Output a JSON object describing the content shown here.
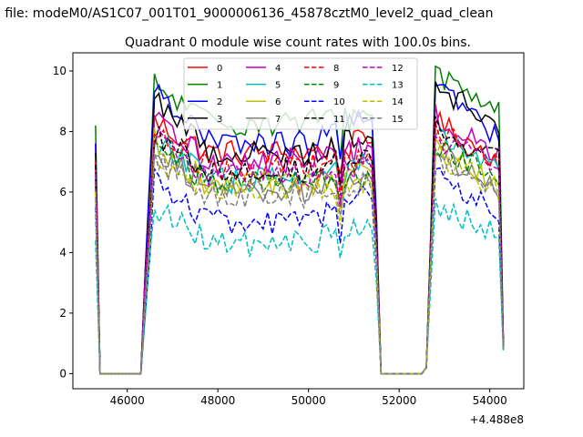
{
  "figure": {
    "suptitle": "n file: modeM0/AS1C07_001T01_9000006136_45878cztM0_level2_quad_clean",
    "title": "Quadrant 0 module wise count rates with 100.0s bins.",
    "offset_text": "+4.488e8"
  },
  "chart_data": {
    "type": "line",
    "title": "Quadrant 0 module wise count rates with 100.0s bins.",
    "xlabel": "",
    "ylabel": "",
    "xlim": [
      44800,
      54750
    ],
    "ylim": [
      -0.5,
      10.6
    ],
    "x_offset": 448800000,
    "xticks": [
      46000,
      48000,
      50000,
      52000,
      54000
    ],
    "xtick_labels": [
      "46000",
      "48000",
      "50000",
      "52000",
      "54000"
    ],
    "yticks": [
      0,
      2,
      4,
      6,
      8,
      10
    ],
    "ytick_labels": [
      "0",
      "2",
      "4",
      "6",
      "8",
      "10"
    ],
    "grid": false,
    "legend_position": "upper center",
    "legend_columns": 4,
    "segments": [
      {
        "x_start": 45300,
        "x_end": 45400,
        "level": "rise"
      },
      {
        "x_start": 45400,
        "x_end": 46300,
        "level": "zero"
      },
      {
        "x_start": 46300,
        "x_end": 51500,
        "level": "on"
      },
      {
        "x_start": 51500,
        "x_end": 52600,
        "level": "zero"
      },
      {
        "x_start": 52600,
        "x_end": 54300,
        "level": "on"
      }
    ],
    "series": [
      {
        "name": "0",
        "color": "#ff0000",
        "style": "solid",
        "start": 7.6,
        "level": 7.3,
        "peak1": 8.3,
        "end1": 7.7,
        "peak2": 8.5,
        "end2": 7.0,
        "final": 1.0
      },
      {
        "name": "1",
        "color": "#008000",
        "style": "solid",
        "start": 8.2,
        "level": 8.3,
        "peak1": 9.5,
        "end1": 8.6,
        "peak2": 10.1,
        "end2": 8.7,
        "final": 1.0
      },
      {
        "name": "2",
        "color": "#0000ff",
        "style": "solid",
        "start": 7.6,
        "level": 7.6,
        "peak1": 9.6,
        "end1": 8.5,
        "peak2": 9.9,
        "end2": 7.6,
        "final": 0.9
      },
      {
        "name": "3",
        "color": "#000000",
        "style": "solid",
        "start": 7.3,
        "level": 7.3,
        "peak1": 9.2,
        "end1": 7.9,
        "peak2": 9.7,
        "end2": 8.1,
        "final": 0.9
      },
      {
        "name": "4",
        "color": "#bf00bf",
        "style": "solid",
        "start": 7.0,
        "level": 7.0,
        "peak1": 8.4,
        "end1": 7.6,
        "peak2": 8.6,
        "end2": 7.1,
        "final": 0.9
      },
      {
        "name": "5",
        "color": "#00bfbf",
        "style": "solid",
        "start": 6.5,
        "level": 6.4,
        "peak1": 7.8,
        "end1": 7.0,
        "peak2": 8.0,
        "end2": 6.6,
        "final": 0.8
      },
      {
        "name": "6",
        "color": "#bfbf00",
        "style": "solid",
        "start": 6.3,
        "level": 6.2,
        "peak1": 7.7,
        "end1": 6.8,
        "peak2": 7.6,
        "end2": 6.3,
        "final": 0.8
      },
      {
        "name": "7",
        "color": "#808080",
        "style": "solid",
        "start": 6.2,
        "level": 6.1,
        "peak1": 7.5,
        "end1": 6.6,
        "peak2": 7.5,
        "end2": 6.1,
        "final": 0.8
      },
      {
        "name": "8",
        "color": "#ff0000",
        "style": "dashed",
        "start": 7.0,
        "level": 6.8,
        "peak1": 8.0,
        "end1": 7.2,
        "peak2": 8.2,
        "end2": 6.8,
        "final": 1.0
      },
      {
        "name": "9",
        "color": "#008000",
        "style": "dashed",
        "start": 6.4,
        "level": 6.3,
        "peak1": 7.6,
        "end1": 6.6,
        "peak2": 7.8,
        "end2": 6.2,
        "final": 0.9
      },
      {
        "name": "10",
        "color": "#0000ff",
        "style": "dashed",
        "start": 5.5,
        "level": 5.0,
        "peak1": 6.5,
        "end1": 6.0,
        "peak2": 6.8,
        "end2": 5.2,
        "final": 0.8
      },
      {
        "name": "11",
        "color": "#000000",
        "style": "dashed",
        "start": 6.9,
        "level": 6.7,
        "peak1": 8.0,
        "end1": 7.3,
        "peak2": 8.2,
        "end2": 7.0,
        "final": 0.9
      },
      {
        "name": "12",
        "color": "#bf00bf",
        "style": "dashed",
        "start": 6.6,
        "level": 6.5,
        "peak1": 7.8,
        "end1": 7.0,
        "peak2": 8.0,
        "end2": 6.6,
        "final": 0.9
      },
      {
        "name": "13",
        "color": "#00bfbf",
        "style": "dashed",
        "start": 4.4,
        "level": 4.3,
        "peak1": 5.5,
        "end1": 5.0,
        "peak2": 5.6,
        "end2": 4.6,
        "final": 0.7
      },
      {
        "name": "14",
        "color": "#bfbf00",
        "style": "dashed",
        "start": 6.0,
        "level": 6.0,
        "peak1": 7.2,
        "end1": 6.4,
        "peak2": 7.4,
        "end2": 6.0,
        "final": 0.8
      },
      {
        "name": "15",
        "color": "#808080",
        "style": "dashed",
        "start": 5.8,
        "level": 5.9,
        "peak1": 7.0,
        "end1": 6.3,
        "peak2": 7.2,
        "end2": 5.8,
        "final": 0.8
      }
    ]
  }
}
